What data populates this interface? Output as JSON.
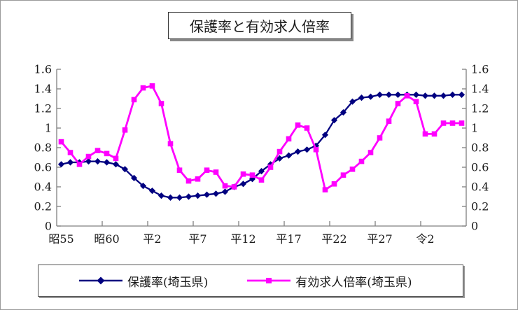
{
  "title": "保護率と有効求人倍率",
  "legend": {
    "items": [
      {
        "label": "保護率(埼玉県)",
        "color": "#000080",
        "marker": "diamond"
      },
      {
        "label": "有効求人倍率(埼玉県)",
        "color": "#FF00FF",
        "marker": "square"
      }
    ],
    "position": "bottom"
  },
  "colors": {
    "axis": "#808080",
    "text": "#1a1a1a",
    "background": "#ffffff",
    "series1": "#000080",
    "series2": "#FF00FF"
  },
  "chart_data": {
    "type": "line",
    "title": "保護率と有効求人倍率",
    "xlabel": "",
    "ylabel": "",
    "grid": false,
    "legend_position": "bottom",
    "dual_y_axis": true,
    "ylim": [
      0,
      1.6
    ],
    "y_ticks": [
      0,
      0.2,
      0.4,
      0.6,
      0.8,
      1,
      1.2,
      1.4,
      1.6
    ],
    "y_tick_labels": [
      "0",
      "0.2",
      "0.4",
      "0.6",
      "0.8",
      "1",
      "1.2",
      "1.4",
      "1.6"
    ],
    "x_tick_labels": [
      "昭55",
      "昭60",
      "平2",
      "平7",
      "平12",
      "平17",
      "平22",
      "平27",
      "令2"
    ],
    "x_tick_years": [
      1980,
      1985,
      1990,
      1995,
      2000,
      2005,
      2010,
      2015,
      2020
    ],
    "x": [
      1980,
      1981,
      1982,
      1983,
      1984,
      1985,
      1986,
      1987,
      1988,
      1989,
      1990,
      1991,
      1992,
      1993,
      1994,
      1995,
      1996,
      1997,
      1998,
      1999,
      2000,
      2001,
      2002,
      2003,
      2004,
      2005,
      2006,
      2007,
      2008,
      2009,
      2010,
      2011,
      2012,
      2013,
      2014,
      2015,
      2016,
      2017,
      2018,
      2019,
      2020,
      2021,
      2022,
      2023,
      2024
    ],
    "series": [
      {
        "name": "保護率(埼玉県)",
        "color": "#000080",
        "marker": "diamond",
        "values": [
          0.63,
          0.65,
          0.65,
          0.66,
          0.66,
          0.65,
          0.63,
          0.58,
          0.49,
          0.41,
          0.36,
          0.31,
          0.29,
          0.29,
          0.3,
          0.31,
          0.32,
          0.33,
          0.35,
          0.4,
          0.43,
          0.48,
          0.56,
          0.63,
          0.69,
          0.72,
          0.76,
          0.78,
          0.82,
          0.93,
          1.08,
          1.16,
          1.27,
          1.31,
          1.32,
          1.34,
          1.34,
          1.34,
          1.34,
          1.34,
          1.33,
          1.33,
          1.33,
          1.34,
          1.34
        ]
      },
      {
        "name": "有効求人倍率(埼玉県)",
        "color": "#FF00FF",
        "marker": "square",
        "values": [
          0.86,
          0.75,
          0.63,
          0.71,
          0.77,
          0.74,
          0.69,
          0.98,
          1.29,
          1.41,
          1.43,
          1.25,
          0.84,
          0.57,
          0.46,
          0.48,
          0.57,
          0.55,
          0.41,
          0.4,
          0.53,
          0.52,
          0.47,
          0.6,
          0.76,
          0.89,
          1.03,
          1.0,
          0.78,
          0.37,
          0.43,
          0.52,
          0.58,
          0.66,
          0.75,
          0.9,
          1.07,
          1.25,
          1.33,
          1.27,
          0.94,
          0.94,
          1.05,
          1.05,
          1.05
        ]
      }
    ]
  }
}
